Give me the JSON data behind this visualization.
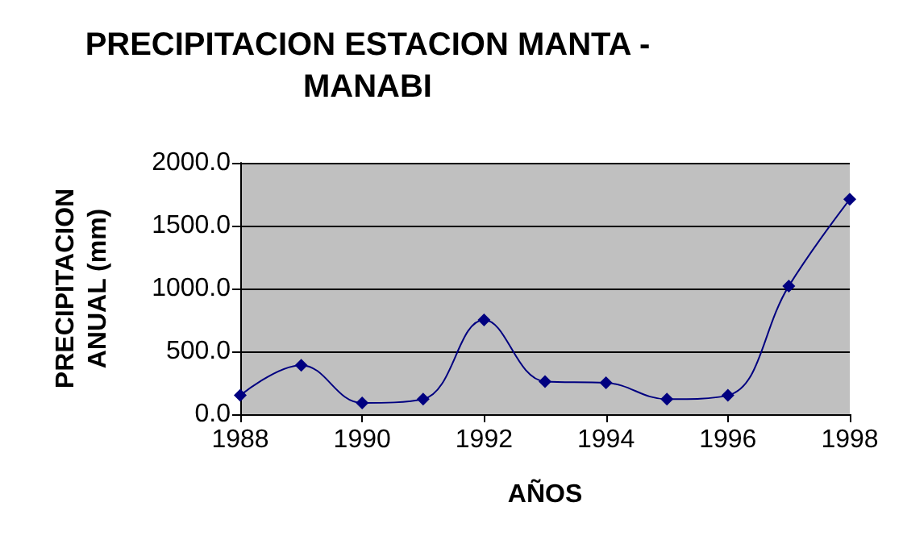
{
  "chart_data": {
    "type": "line",
    "title": "PRECIPITACION ESTACION MANTA -\nMANABI",
    "xlabel": "AÑOS",
    "ylabel": "PRECIPITACION\nANUAL (mm)",
    "x": [
      1988,
      1989,
      1990,
      1991,
      1992,
      1993,
      1994,
      1995,
      1996,
      1997,
      1998
    ],
    "series": [
      {
        "color": "#000080",
        "values": [
          150,
          390,
          90,
          120,
          750,
          260,
          250,
          120,
          150,
          1020,
          1710
        ]
      }
    ],
    "xlim": [
      1988,
      1998
    ],
    "xticks": [
      1988,
      1990,
      1992,
      1994,
      1996,
      1998
    ],
    "ylim": [
      0,
      2000
    ],
    "yticks": [
      {
        "value": 0,
        "label": "0.0"
      },
      {
        "value": 500,
        "label": "500.0"
      },
      {
        "value": 1000,
        "label": "1000.0"
      },
      {
        "value": 1500,
        "label": "1500.0"
      },
      {
        "value": 2000,
        "label": "2000.0"
      }
    ],
    "grid": "y",
    "marker": "diamond",
    "line_style": "solid"
  }
}
